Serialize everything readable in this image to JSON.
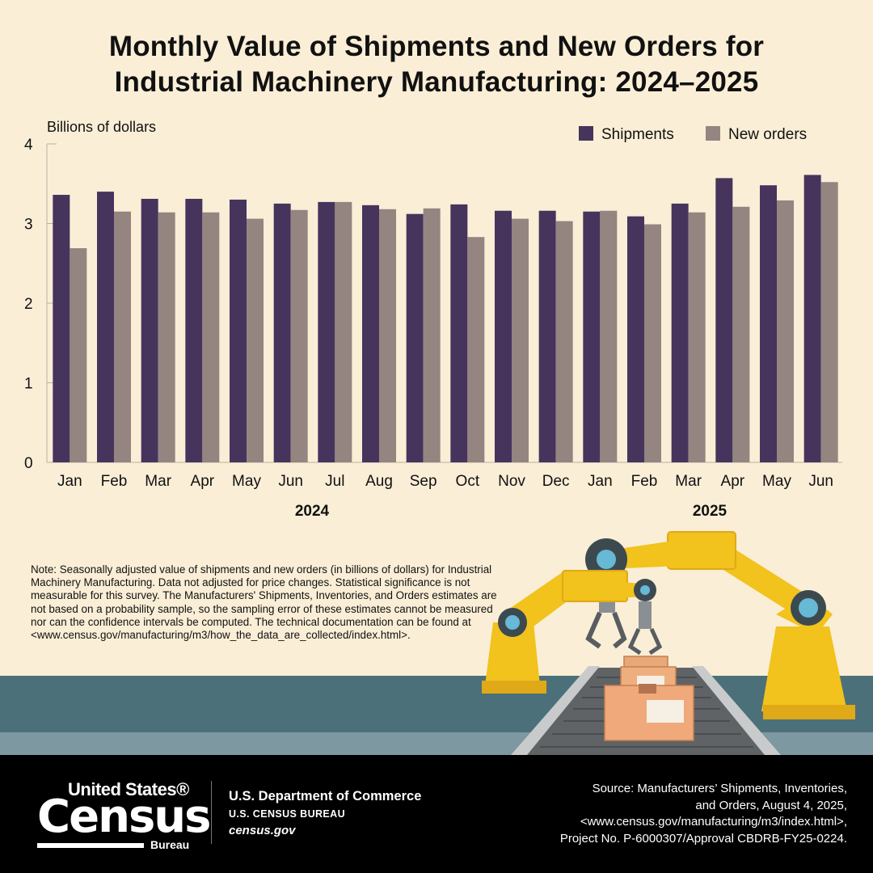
{
  "title_line1": "Monthly Value of Shipments and New Orders for",
  "title_line2": "Industrial Machinery Manufacturing: 2024–2025",
  "colors": {
    "shipments": "#46345d",
    "new_orders": "#948581",
    "background": "#faeed6",
    "footer": "#000000"
  },
  "chart_data": {
    "type": "bar",
    "title": "Monthly Value of Shipments and New Orders for Industrial Machinery Manufacturing: 2024–2025",
    "ylabel": "Billions of dollars",
    "xlabel": "",
    "ylim": [
      0,
      4
    ],
    "yticks": [
      "0",
      "1",
      "2",
      "3",
      "4"
    ],
    "categories": [
      "Jan",
      "Feb",
      "Mar",
      "Apr",
      "May",
      "Jun",
      "Jul",
      "Aug",
      "Sep",
      "Oct",
      "Nov",
      "Dec",
      "Jan",
      "Feb",
      "Mar",
      "Apr",
      "May",
      "Jun"
    ],
    "year_groups": [
      {
        "label": "2024",
        "start": 0,
        "end": 11
      },
      {
        "label": "2025",
        "start": 12,
        "end": 17
      }
    ],
    "legend": "top-right",
    "series": [
      {
        "name": "Shipments",
        "values": [
          3.36,
          3.4,
          3.31,
          3.31,
          3.3,
          3.25,
          3.27,
          3.23,
          3.12,
          3.24,
          3.16,
          3.16,
          3.15,
          3.09,
          3.25,
          3.57,
          3.48,
          3.61
        ]
      },
      {
        "name": "New orders",
        "values": [
          2.69,
          3.15,
          3.14,
          3.14,
          3.06,
          3.17,
          3.27,
          3.18,
          3.19,
          2.83,
          3.06,
          3.03,
          3.16,
          2.99,
          3.14,
          3.21,
          3.29,
          3.52
        ]
      }
    ]
  },
  "note": "Note: Seasonally adjusted value of shipments and new orders (in billions of dollars) for Industrial Machinery Manufacturing. Data not adjusted for price changes. Statistical significance is not measurable for this survey. The Manufacturers' Shipments, Inventories, and Orders estimates are not based on a probability sample, so the sampling error of these estimates cannot be measured nor can the confidence intervals be computed. The technical documentation can be found at <www.census.gov/manufacturing/m3/how_the_data_are_collected/index.html>.",
  "footer": {
    "logo_line1": "United States®",
    "logo_line2": "Census",
    "logo_line3": "Bureau",
    "dept_name": "U.S. Department of Commerce",
    "bureau_name": "U.S. CENSUS BUREAU",
    "website": "census.gov",
    "source_line1": "Source: Manufacturers’ Shipments, Inventories,",
    "source_line2": "and Orders, August 4, 2025,",
    "source_line3": "<www.census.gov/manufacturing/m3/index.html>,",
    "source_line4": "Project No. P-6000307/Approval CBDRB-FY25-0224."
  }
}
